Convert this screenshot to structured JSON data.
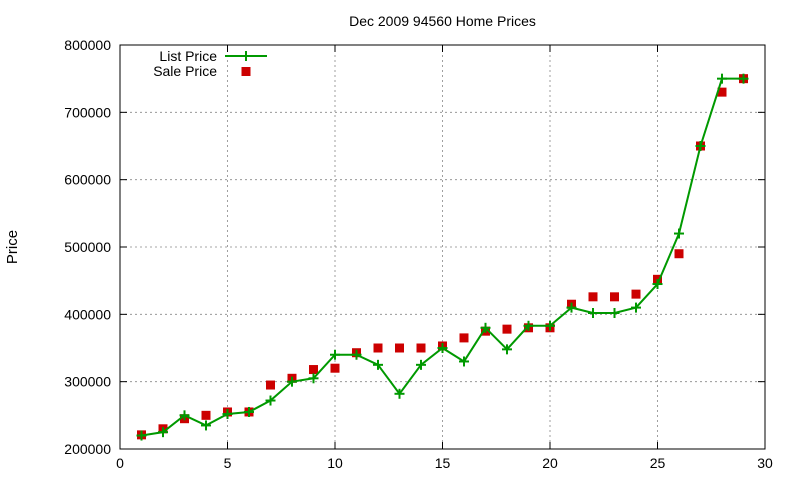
{
  "chart_data": {
    "type": "line",
    "title": "Dec 2009 94560 Home Prices",
    "xlabel": "",
    "ylabel": "Price",
    "xlim": [
      0,
      30
    ],
    "ylim": [
      200000,
      800000
    ],
    "x_ticks": [
      "0",
      "5",
      "10",
      "15",
      "20",
      "25",
      "30"
    ],
    "y_ticks": [
      "200000",
      "300000",
      "400000",
      "500000",
      "600000",
      "700000",
      "800000"
    ],
    "grid": true,
    "legend_position": "top-left",
    "series": [
      {
        "name": "List Price",
        "style": "lines-with-plus-markers",
        "color": "#009900",
        "x": [
          1,
          2,
          3,
          4,
          5,
          6,
          7,
          8,
          9,
          10,
          11,
          12,
          13,
          14,
          15,
          16,
          17,
          18,
          19,
          20,
          21,
          22,
          23,
          24,
          25,
          26,
          27,
          28,
          29
        ],
        "y": [
          220000,
          225000,
          250000,
          235000,
          252000,
          255000,
          272000,
          300000,
          305000,
          340000,
          340000,
          325000,
          282000,
          325000,
          350000,
          330000,
          380000,
          348000,
          383000,
          383000,
          410000,
          402000,
          402000,
          410000,
          445000,
          520000,
          650000,
          750000,
          750000
        ]
      },
      {
        "name": "Sale Price",
        "style": "square-markers",
        "color": "#cc0000",
        "x": [
          1,
          2,
          3,
          4,
          5,
          6,
          7,
          8,
          9,
          10,
          11,
          12,
          13,
          14,
          15,
          16,
          17,
          18,
          19,
          20,
          21,
          22,
          23,
          24,
          25,
          26,
          27,
          28,
          29
        ],
        "y": [
          221000,
          230000,
          245000,
          250000,
          255000,
          255000,
          295000,
          305000,
          318000,
          320000,
          343000,
          350000,
          350000,
          350000,
          353000,
          365000,
          375000,
          378000,
          380000,
          380000,
          415000,
          426000,
          426000,
          430000,
          452000,
          490000,
          650000,
          730000,
          750000
        ]
      }
    ]
  }
}
